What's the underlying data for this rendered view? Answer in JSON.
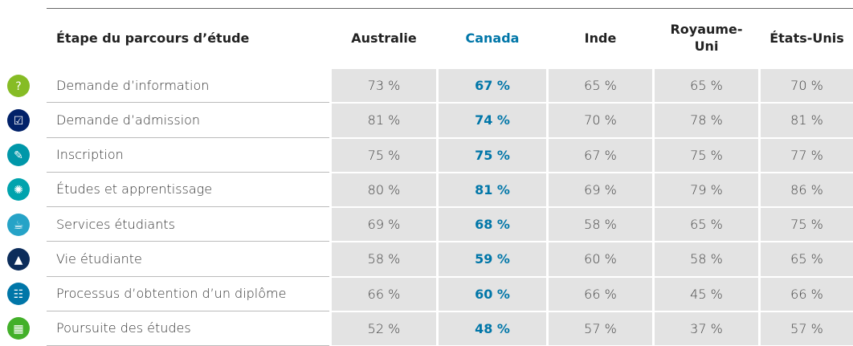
{
  "table": {
    "header": [
      "Étape du parcours d’étude",
      "Australie",
      "Canada",
      "Inde",
      "Royaume-Uni",
      "États-Unis"
    ],
    "rows": [
      [
        "Demande d’information",
        "73 %",
        "67 %",
        "65 %",
        "65 %",
        "70 %"
      ],
      [
        "Demande d’admission",
        "81 %",
        "74 %",
        "70 %",
        "78 %",
        "81 %"
      ],
      [
        "Inscription",
        "75 %",
        "75 %",
        "67 %",
        "75 %",
        "77 %"
      ],
      [
        "Études et apprentissage",
        "80 %",
        "81 %",
        "69 %",
        "79 %",
        "86 %"
      ],
      [
        "Services étudiants",
        "69 %",
        "68 %",
        "58 %",
        "65 %",
        "75 %"
      ],
      [
        "Vie étudiante",
        "58 %",
        "59 %",
        "60 %",
        "58 %",
        "65 %"
      ],
      [
        "Processus d’obtention d’un diplôme",
        "66 %",
        "60 %",
        "66 %",
        "45 %",
        "66 %"
      ],
      [
        "Poursuite des études",
        "52 %",
        "48 %",
        "57 %",
        "37 %",
        "57 %"
      ]
    ]
  }
}
